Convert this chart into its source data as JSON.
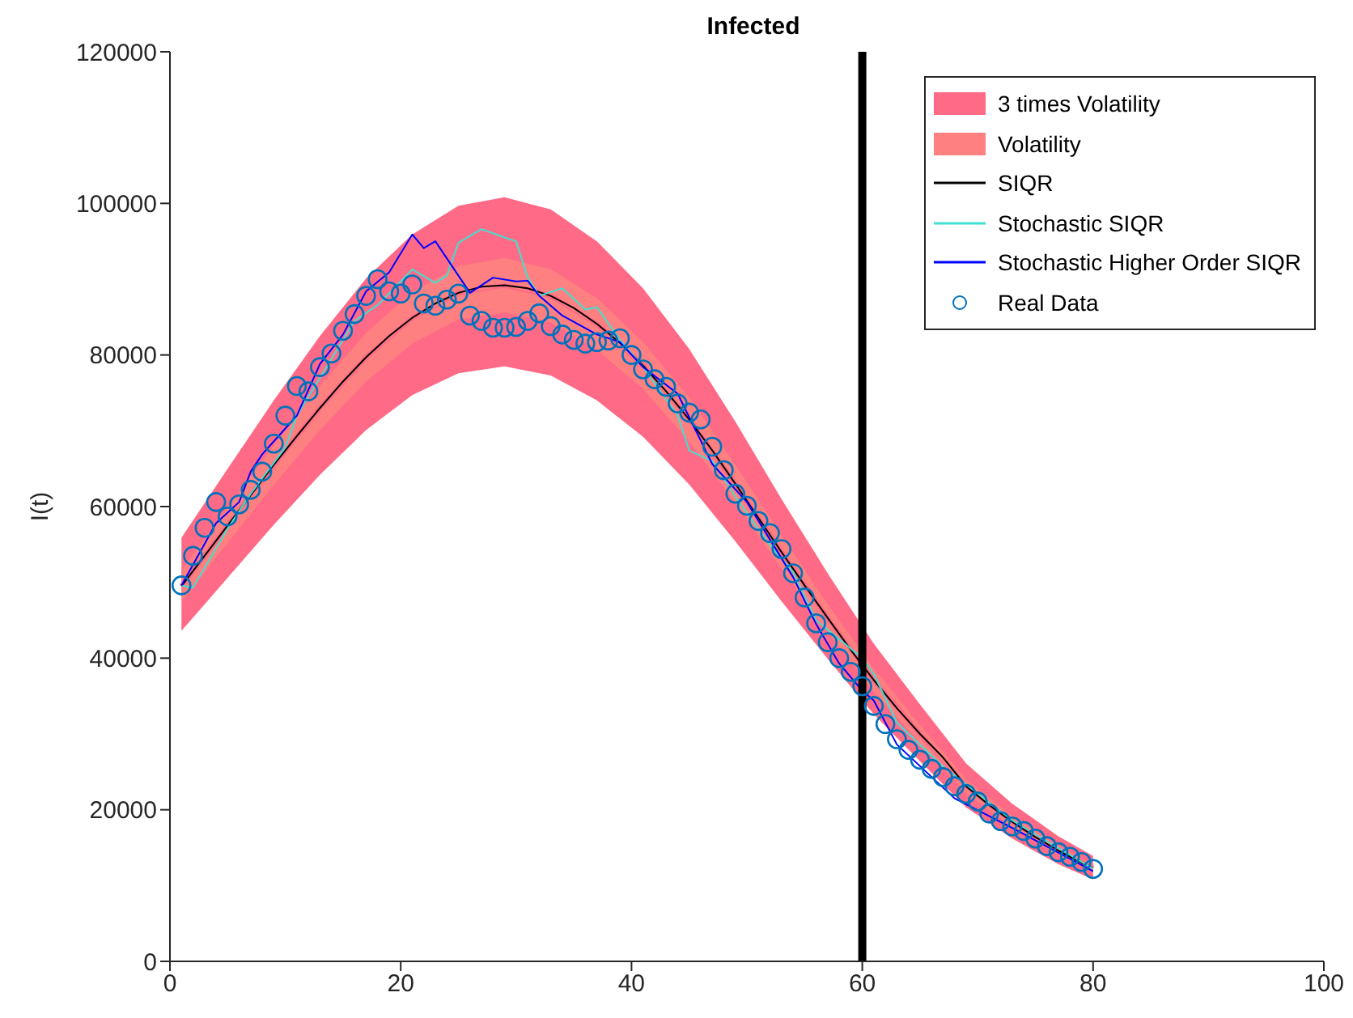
{
  "chart_data": {
    "type": "line",
    "title": "Infected",
    "ylabel": "I(t)",
    "xlim": [
      0,
      100
    ],
    "xticks": [
      0,
      20,
      40,
      60,
      80,
      100
    ],
    "ylim": [
      0,
      120000
    ],
    "yticks": [
      0,
      20000,
      40000,
      60000,
      80000,
      100000,
      120000
    ],
    "grid": false,
    "legend": "top right",
    "ref_lines": [
      {
        "axis": "x",
        "value": 60,
        "color": "#000000"
      }
    ],
    "series": [
      {
        "type": "line",
        "name": "3 times Volatility",
        "color": "#ff6b86",
        "x": [
          1,
          5,
          9,
          13,
          17,
          21,
          25,
          29,
          33,
          37,
          41,
          45,
          49,
          53,
          57,
          61,
          65,
          69,
          73,
          77,
          80
        ],
        "values": [
          49500,
          57500,
          65500,
          73000,
          79700,
          84900,
          88200,
          89200,
          87800,
          84100,
          78600,
          71500,
          63000,
          54000,
          45300,
          37100,
          30000,
          23100,
          18400,
          14600,
          12300
        ],
        "lower": [
          43600,
          50600,
          57600,
          64200,
          70100,
          74700,
          77600,
          78500,
          77300,
          74000,
          69200,
          62900,
          55400,
          47500,
          39900,
          32600,
          26400,
          20300,
          16200,
          12800,
          10800
        ],
        "upper": [
          55900,
          65000,
          74000,
          82500,
          90100,
          95900,
          99700,
          100800,
          99200,
          95000,
          88800,
          80800,
          71200,
          61000,
          51200,
          41900,
          33900,
          26100,
          20800,
          16500,
          13900
        ]
      },
      {
        "type": "line",
        "name": "Volatility",
        "color": "#ff8080",
        "x": [
          1,
          5,
          9,
          13,
          17,
          21,
          25,
          29,
          33,
          37,
          41,
          45,
          49,
          53,
          57,
          61,
          65,
          69,
          73,
          77,
          80
        ],
        "values": [
          49500,
          57500,
          65500,
          73000,
          79700,
          84900,
          88200,
          89200,
          87800,
          84100,
          78600,
          71500,
          63000,
          54000,
          45300,
          37100,
          30000,
          23100,
          18400,
          14600,
          12300
        ],
        "lower": [
          47500,
          55200,
          62900,
          70100,
          76500,
          81500,
          84700,
          85600,
          84300,
          80700,
          75500,
          68600,
          60500,
          51800,
          43500,
          35600,
          28800,
          22200,
          17700,
          14000,
          11800
        ],
        "upper": [
          51500,
          59800,
          68100,
          75900,
          82900,
          88300,
          91700,
          92800,
          91300,
          87500,
          81700,
          74400,
          65500,
          56200,
          47100,
          38600,
          31200,
          24000,
          19100,
          15200,
          12800
        ]
      },
      {
        "type": "line",
        "name": "SIQR",
        "color": "#000000",
        "marker": "none",
        "x": [
          1,
          3,
          5,
          7,
          9,
          11,
          13,
          15,
          17,
          19,
          21,
          23,
          25,
          27,
          29,
          31,
          33,
          35,
          37,
          39,
          41,
          43,
          45,
          47,
          49,
          51,
          53,
          55,
          57,
          59,
          61,
          63,
          65,
          67,
          69,
          71,
          73,
          75,
          77,
          79,
          80
        ],
        "values": [
          49500,
          53500,
          57500,
          61500,
          65500,
          69300,
          73000,
          76500,
          79700,
          82500,
          84900,
          86800,
          88200,
          89000,
          89200,
          88800,
          87800,
          86200,
          84100,
          81600,
          78600,
          75200,
          71500,
          67400,
          63000,
          58500,
          54000,
          49600,
          45300,
          41100,
          37100,
          33400,
          30000,
          26900,
          23100,
          20600,
          18400,
          16400,
          14600,
          13000,
          12300
        ]
      },
      {
        "type": "line",
        "name": "Stochastic SIQR",
        "color": "#40e0d0",
        "marker": "none",
        "x": [
          1,
          2,
          5,
          7,
          10,
          11,
          15,
          16,
          18,
          19,
          21,
          23,
          24,
          25,
          27,
          29,
          30,
          31,
          32,
          34,
          36,
          37,
          39,
          41,
          44,
          45,
          47,
          49,
          52,
          54,
          56,
          60,
          61,
          63,
          67,
          73,
          80
        ],
        "values": [
          49600,
          49300,
          57100,
          61700,
          67800,
          72000,
          82000,
          84500,
          86600,
          88100,
          91300,
          89500,
          90500,
          94800,
          96600,
          95500,
          95000,
          90200,
          87800,
          88800,
          86000,
          86300,
          82000,
          78400,
          72000,
          67400,
          66000,
          61300,
          54900,
          51400,
          45000,
          40000,
          37900,
          31500,
          25700,
          18600,
          12200
        ]
      },
      {
        "type": "line",
        "name": "Stochastic Higher Order SIQR",
        "color": "#0000ff",
        "marker": "none",
        "x": [
          1,
          4,
          6,
          7,
          8,
          10,
          11,
          13,
          15,
          17,
          19,
          21,
          22,
          23,
          26,
          28,
          30,
          31,
          32,
          34,
          37,
          39,
          41,
          44,
          47,
          50,
          54,
          56,
          58,
          60,
          61,
          63,
          68,
          73,
          80
        ],
        "values": [
          49600,
          57800,
          60600,
          64600,
          66900,
          70300,
          72000,
          78800,
          82700,
          88400,
          90900,
          95900,
          94100,
          95000,
          88200,
          90200,
          89700,
          89800,
          87800,
          85200,
          82700,
          81700,
          78400,
          74900,
          65600,
          60600,
          50700,
          44500,
          39300,
          35700,
          34400,
          28600,
          21500,
          17600,
          11900
        ]
      },
      {
        "type": "scatter",
        "name": "Real Data",
        "color": "#0072bd",
        "marker": "circle",
        "x": [
          1,
          2,
          3,
          4,
          5,
          6,
          7,
          8,
          9,
          10,
          11,
          12,
          13,
          14,
          15,
          16,
          17,
          18,
          19,
          20,
          21,
          22,
          23,
          24,
          25,
          26,
          27,
          28,
          29,
          30,
          31,
          32,
          33,
          34,
          35,
          36,
          37,
          38,
          39,
          40,
          41,
          42,
          43,
          44,
          45,
          46,
          47,
          48,
          49,
          50,
          51,
          52,
          53,
          54,
          55,
          56,
          57,
          58,
          59,
          60,
          61,
          62,
          63,
          64,
          65,
          66,
          67,
          68,
          69,
          70,
          71,
          72,
          73,
          74,
          75,
          76,
          77,
          78,
          79,
          80
        ],
        "values": [
          49600,
          53500,
          57200,
          60600,
          58700,
          60300,
          62200,
          64600,
          68300,
          72000,
          75900,
          75200,
          78400,
          80200,
          83200,
          85400,
          87800,
          90000,
          88400,
          88100,
          89300,
          86800,
          86500,
          87300,
          88100,
          85200,
          84500,
          83600,
          83600,
          83700,
          84500,
          85500,
          83800,
          82700,
          82000,
          81500,
          81700,
          81900,
          82200,
          80000,
          78100,
          76800,
          75800,
          73600,
          72400,
          71500,
          67900,
          64800,
          61700,
          60100,
          58100,
          56500,
          54400,
          51200,
          48000,
          44600,
          42100,
          40000,
          38200,
          36300,
          33700,
          31300,
          29300,
          27900,
          26600,
          25400,
          24300,
          23100,
          22100,
          21100,
          19500,
          18500,
          17800,
          17200,
          16200,
          15200,
          14400,
          13800,
          13100,
          12200
        ]
      }
    ]
  }
}
